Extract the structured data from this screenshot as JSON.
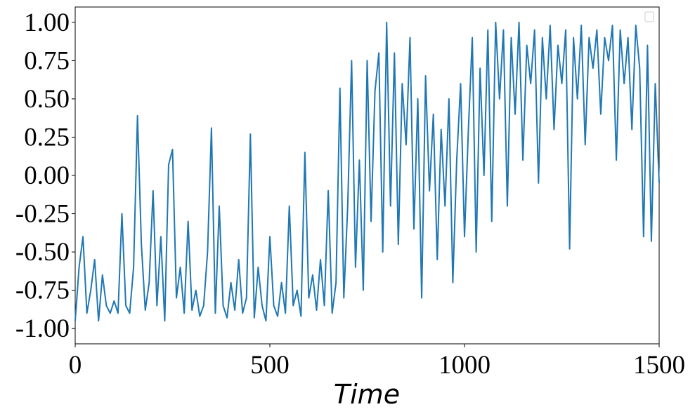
{
  "chart_data": {
    "type": "line",
    "xlabel": "Time",
    "x": [
      0,
      10,
      20,
      30,
      40,
      50,
      60,
      70,
      80,
      90,
      100,
      110,
      120,
      130,
      140,
      150,
      160,
      170,
      180,
      190,
      200,
      210,
      220,
      230,
      240,
      250,
      260,
      270,
      280,
      290,
      300,
      310,
      320,
      330,
      340,
      350,
      360,
      370,
      380,
      390,
      400,
      410,
      420,
      430,
      440,
      450,
      460,
      470,
      480,
      490,
      500,
      510,
      520,
      530,
      540,
      550,
      560,
      570,
      580,
      590,
      600,
      610,
      620,
      630,
      640,
      650,
      660,
      670,
      680,
      690,
      700,
      710,
      720,
      730,
      740,
      750,
      760,
      770,
      780,
      790,
      800,
      810,
      820,
      830,
      840,
      850,
      860,
      870,
      880,
      890,
      900,
      910,
      920,
      930,
      940,
      950,
      960,
      970,
      980,
      990,
      1000,
      1010,
      1020,
      1030,
      1040,
      1050,
      1060,
      1070,
      1080,
      1090,
      1100,
      1110,
      1120,
      1130,
      1140,
      1150,
      1160,
      1170,
      1180,
      1190,
      1200,
      1210,
      1220,
      1230,
      1240,
      1250,
      1260,
      1270,
      1280,
      1290,
      1300,
      1310,
      1320,
      1330,
      1340,
      1350,
      1360,
      1370,
      1380,
      1390,
      1400,
      1410,
      1420,
      1430,
      1440,
      1450,
      1460,
      1470,
      1480,
      1490,
      1500
    ],
    "series": [
      {
        "color": "#1f77b4",
        "values": [
          -0.95,
          -0.6,
          -0.4,
          -0.9,
          -0.75,
          -0.55,
          -0.95,
          -0.65,
          -0.85,
          -0.9,
          -0.82,
          -0.9,
          -0.25,
          -0.85,
          -0.9,
          -0.6,
          0.39,
          -0.45,
          -0.88,
          -0.7,
          -0.1,
          -0.85,
          -0.4,
          -0.95,
          0.07,
          0.17,
          -0.8,
          -0.6,
          -0.9,
          -0.3,
          -0.88,
          -0.75,
          -0.92,
          -0.85,
          -0.5,
          0.31,
          -0.9,
          -0.2,
          -0.85,
          -0.93,
          -0.7,
          -0.88,
          -0.55,
          -0.9,
          -0.8,
          0.27,
          -0.93,
          -0.6,
          -0.85,
          -0.95,
          -0.4,
          -0.85,
          -0.92,
          -0.7,
          -0.9,
          -0.2,
          -0.85,
          -0.75,
          -0.92,
          0.15,
          -0.8,
          -0.65,
          -0.88,
          -0.55,
          -0.85,
          -0.1,
          -0.9,
          -0.7,
          0.57,
          -0.8,
          -0.2,
          0.75,
          -0.6,
          0.1,
          -0.75,
          0.75,
          -0.3,
          0.55,
          0.8,
          -0.5,
          1.0,
          -0.2,
          0.8,
          -0.45,
          0.6,
          0.2,
          0.9,
          -0.35,
          0.5,
          -0.8,
          0.65,
          -0.1,
          0.4,
          -0.55,
          0.3,
          -0.2,
          0.5,
          -0.7,
          0.1,
          0.6,
          -0.4,
          0.3,
          0.9,
          -0.5,
          0.7,
          0.0,
          0.95,
          -0.3,
          1.0,
          0.5,
          0.95,
          -0.2,
          0.9,
          0.4,
          1.0,
          0.1,
          0.85,
          0.6,
          0.95,
          -0.05,
          0.9,
          0.5,
          0.98,
          0.3,
          0.85,
          0.6,
          0.95,
          -0.48,
          0.9,
          0.5,
          0.98,
          0.2,
          0.9,
          0.7,
          0.95,
          0.4,
          0.9,
          0.75,
          0.98,
          0.1,
          0.95,
          0.6,
          0.9,
          0.3,
          0.98,
          0.7,
          -0.4,
          0.85,
          -0.43,
          0.6,
          -0.05
        ]
      }
    ],
    "xlim": [
      0,
      1500
    ],
    "xticks": [
      0,
      500,
      1000,
      1500
    ],
    "ylim": [
      -1.1,
      1.1
    ],
    "yticks": [
      {
        "value": 1,
        "label": "1.00"
      },
      {
        "value": 0.75,
        "label": "0.75"
      },
      {
        "value": 0.5,
        "label": "0.50"
      },
      {
        "value": 0.25,
        "label": "0.25"
      },
      {
        "value": 0,
        "label": "0.00"
      },
      {
        "value": -0.25,
        "label": "-0.25"
      },
      {
        "value": -0.5,
        "label": "-0.50"
      },
      {
        "value": -0.75,
        "label": "-0.75"
      },
      {
        "value": -1,
        "label": "-1.00"
      }
    ]
  }
}
